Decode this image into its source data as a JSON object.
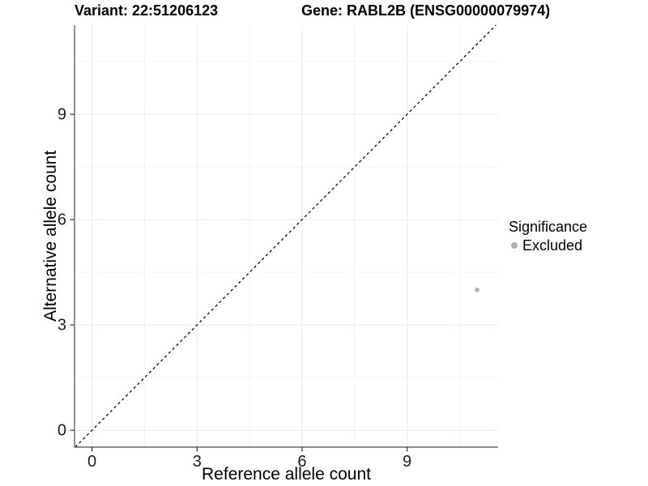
{
  "chart_data": {
    "type": "scatter",
    "titles": {
      "left": "Variant: 22:51206123",
      "right": "Gene: RABL2B (ENSG00000079974)"
    },
    "xlabel": "Reference allele count",
    "ylabel": "Alternative allele count",
    "xlim": [
      -0.5,
      11.6
    ],
    "ylim": [
      -0.48,
      11.54
    ],
    "xticks": [
      0,
      3,
      6,
      9
    ],
    "yticks": [
      0,
      3,
      6,
      9
    ],
    "x_minor_ticks": [
      1.5,
      4.5,
      7.5,
      10.5
    ],
    "y_minor_ticks": [
      1.5,
      4.5,
      7.5,
      10.5
    ],
    "grid": true,
    "series": [
      {
        "name": "Excluded",
        "color": "#b5b5b5",
        "points": [
          {
            "x": 11,
            "y": 4
          }
        ]
      }
    ],
    "reference_line": {
      "kind": "identity",
      "slope": 1,
      "intercept": 0,
      "line_style": "dashed",
      "color": "#0a0a0a"
    },
    "legend": {
      "position": "right",
      "title": "Significance",
      "items": [
        {
          "label": "Excluded",
          "marker": "circle",
          "color": "#b0b0b0"
        }
      ]
    },
    "colors": {
      "background": "#ffffff",
      "axis_line": "#4a4a4a",
      "tick_mark": "#333333",
      "tick_label": "#1f1f1f",
      "grid_major": "#e9e9e9",
      "grid_minor": "#f3f3f3"
    }
  }
}
